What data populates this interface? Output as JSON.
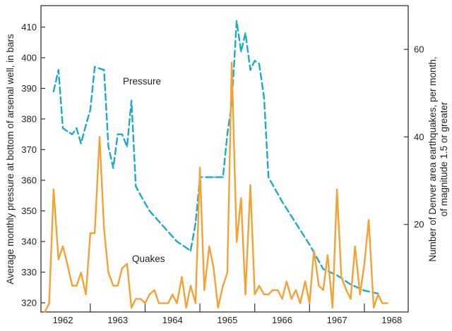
{
  "chart_data": {
    "type": "line",
    "title": "",
    "left_axis": {
      "label": "Average monthly pressure at bottom of arsenal well, in bars",
      "ylim": [
        317,
        417
      ],
      "ticks": [
        320,
        330,
        340,
        350,
        360,
        370,
        380,
        390,
        400,
        410
      ]
    },
    "right_axis": {
      "label_line1": "Number of Denver area earthquakes, per month,",
      "label_line2": "of magnitude 1.5 or greater",
      "ylim": [
        0,
        70
      ],
      "ticks": [
        20,
        40,
        60
      ]
    },
    "x_axis": {
      "xlim": [
        1961.6,
        1968.3
      ],
      "year_labels": [
        "1962",
        "1963",
        "1964",
        "1965",
        "1966",
        "1967",
        "1968"
      ],
      "year_label_positions": [
        1962.0,
        1963.0,
        1964.0,
        1965.0,
        1966.0,
        1967.0,
        1968.0
      ],
      "boundary_ticks": [
        1962.5,
        1963.5,
        1964.5,
        1965.5,
        1966.5,
        1967.5
      ]
    },
    "series": [
      {
        "name": "Pressure",
        "axis": "left",
        "color": "#1BAAC9",
        "dash": true,
        "x": [
          1961.83,
          1961.92,
          1962.0,
          1962.08,
          1962.17,
          1962.25,
          1962.33,
          1962.42,
          1962.5,
          1962.58,
          1962.75,
          1962.83,
          1962.92,
          1963.0,
          1963.08,
          1963.17,
          1963.25,
          1963.33,
          1963.42,
          1963.58,
          1963.83,
          1964.08,
          1964.33,
          1964.42,
          1964.5,
          1964.75,
          1964.83,
          1964.92,
          1965.0,
          1965.08,
          1965.17,
          1965.25,
          1965.33,
          1965.42,
          1965.5,
          1965.58,
          1965.67,
          1965.75,
          1966.0,
          1966.25,
          1966.5,
          1966.75,
          1967.0,
          1967.25,
          1967.5,
          1967.75
        ],
        "values": [
          389,
          396,
          377,
          376,
          375,
          377,
          372,
          378,
          383,
          397,
          396,
          371,
          364,
          375,
          375,
          371,
          386,
          358,
          355,
          350,
          345,
          340,
          337,
          346,
          361,
          361,
          361,
          361,
          375,
          385,
          412,
          402,
          408,
          396,
          399,
          398,
          387,
          361,
          353,
          346,
          339,
          331,
          329,
          326,
          324,
          323
        ]
      },
      {
        "name": "Quakes",
        "axis": "right",
        "color": "#F5A133",
        "dash": false,
        "x": [
          1961.67,
          1961.75,
          1961.83,
          1961.92,
          1962.0,
          1962.08,
          1962.17,
          1962.25,
          1962.33,
          1962.42,
          1962.5,
          1962.58,
          1962.67,
          1962.75,
          1962.83,
          1962.92,
          1963.0,
          1963.08,
          1963.17,
          1963.25,
          1963.33,
          1963.42,
          1963.5,
          1963.58,
          1963.67,
          1963.75,
          1963.83,
          1963.92,
          1964.0,
          1964.08,
          1964.17,
          1964.25,
          1964.33,
          1964.42,
          1964.5,
          1964.58,
          1964.67,
          1964.75,
          1964.83,
          1964.92,
          1965.0,
          1965.08,
          1965.17,
          1965.25,
          1965.33,
          1965.42,
          1965.5,
          1965.58,
          1965.67,
          1965.75,
          1965.83,
          1965.92,
          1966.0,
          1966.08,
          1966.17,
          1966.25,
          1966.33,
          1966.42,
          1966.5,
          1966.58,
          1966.67,
          1966.75,
          1966.83,
          1966.92,
          1967.0,
          1967.08,
          1967.17,
          1967.25,
          1967.33,
          1967.42,
          1967.5,
          1967.58,
          1967.67,
          1967.75,
          1967.83,
          1967.92
        ],
        "values": [
          0,
          2,
          28,
          12,
          15,
          11,
          6,
          6,
          9,
          4,
          18,
          18,
          40,
          19,
          9,
          6,
          6,
          10,
          11,
          1,
          3,
          3,
          2,
          4,
          5,
          2,
          2,
          2,
          4,
          2,
          8,
          1,
          6,
          2,
          33,
          5,
          15,
          10,
          1,
          6,
          9,
          57,
          16,
          26,
          4,
          29,
          4,
          6,
          4,
          4,
          5,
          5,
          3,
          7,
          3,
          5,
          2,
          7,
          2,
          14,
          6,
          5,
          13,
          1,
          28,
          8,
          5,
          3,
          15,
          4,
          11,
          21,
          1,
          4,
          2,
          2
        ]
      }
    ],
    "annotations": [
      {
        "text": "Pressure",
        "series": "Pressure"
      },
      {
        "text": "Quakes",
        "series": "Quakes"
      }
    ],
    "grid": false,
    "legend": "none"
  }
}
